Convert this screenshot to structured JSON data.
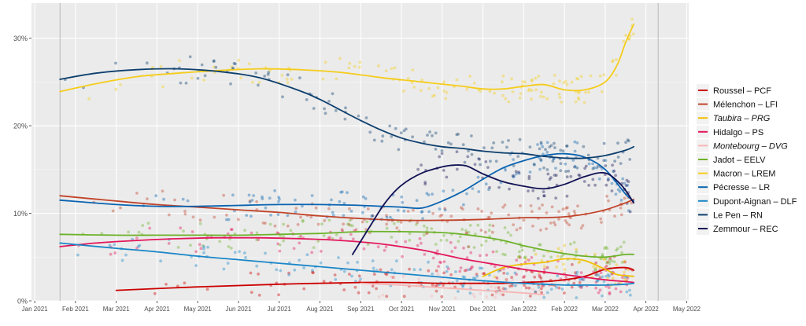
{
  "chart_data": {
    "type": "line",
    "title": "",
    "xlabel": "",
    "ylabel": "",
    "ylim": [
      0,
      34
    ],
    "y_ticks": [
      0,
      10,
      20,
      30
    ],
    "y_tick_labels": [
      "0%",
      "10%",
      "20%",
      "30%"
    ],
    "x_tick_labels": [
      "Jan 2021",
      "Feb 2021",
      "Mar 2021",
      "Apr 2021",
      "May 2021",
      "Jun 2021",
      "Jul 2021",
      "Aug 2021",
      "Sep 2021",
      "Oct 2021",
      "Nov 2021",
      "Dec 2021",
      "Jan 2022",
      "Feb 2022",
      "Mar 2022",
      "Apr 2022",
      "May 2022"
    ],
    "x_tick_months": [
      0,
      1,
      2,
      3,
      4,
      5,
      6,
      7,
      8,
      9,
      10,
      11,
      12,
      13,
      14,
      15,
      16
    ],
    "x_range_months": [
      -0.08,
      16.05
    ],
    "vertical_reference_lines_months": [
      0.62,
      15.3
    ],
    "x_unit": "months since Jan 2021",
    "grid": true,
    "legend_position": "right",
    "background": "#ebebeb",
    "series": [
      {
        "name": "Roussel – PCF",
        "italic": false,
        "color": "#cc0000",
        "x": [
          2.0,
          4.0,
          6.0,
          8.0,
          9.0,
          10.0,
          10.5,
          11.0,
          11.5,
          12.0,
          12.5,
          13.0,
          13.5,
          14.0,
          14.5,
          14.7
        ],
        "y": [
          1.2,
          1.6,
          1.9,
          2.1,
          2.1,
          2.0,
          2.0,
          2.0,
          2.0,
          2.1,
          2.2,
          2.4,
          2.8,
          3.6,
          3.8,
          3.5
        ]
      },
      {
        "name": "Mélenchon – LFI",
        "italic": false,
        "color": "#c1442a",
        "x": [
          0.62,
          2.0,
          3.0,
          4.0,
          5.0,
          6.0,
          7.0,
          8.0,
          9.0,
          10.0,
          11.0,
          12.0,
          12.5,
          13.0,
          13.5,
          14.0,
          14.5,
          14.7
        ],
        "y": [
          12.0,
          11.4,
          11.0,
          10.7,
          10.4,
          10.1,
          9.7,
          9.4,
          9.2,
          9.2,
          9.3,
          9.5,
          9.5,
          9.6,
          9.9,
          10.4,
          11.2,
          11.6
        ]
      },
      {
        "name": "Taubira – PRG",
        "italic": true,
        "color": "#f0c000",
        "x": [
          11.0,
          11.5,
          12.0,
          12.5,
          13.0,
          13.5,
          14.0,
          14.3,
          14.7
        ],
        "y": [
          2.8,
          3.8,
          4.2,
          4.4,
          4.8,
          4.6,
          3.6,
          3.0,
          2.8
        ]
      },
      {
        "name": "Hidalgo – PS",
        "italic": false,
        "color": "#e3175a",
        "x": [
          0.62,
          1.5,
          2.5,
          3.5,
          4.5,
          5.5,
          6.5,
          7.5,
          8.5,
          9.5,
          10.0,
          10.5,
          11.0,
          11.5,
          12.0,
          12.5,
          13.0,
          13.5,
          14.0,
          14.5,
          14.7
        ],
        "y": [
          6.2,
          6.6,
          6.9,
          7.1,
          7.2,
          7.2,
          7.1,
          6.9,
          6.5,
          5.8,
          5.3,
          4.8,
          4.4,
          4.0,
          3.6,
          3.3,
          3.0,
          2.7,
          2.4,
          2.2,
          2.1
        ]
      },
      {
        "name": "Montebourg – DVG",
        "italic": true,
        "color": "#f7b4b4",
        "x": [
          8.0,
          9.0,
          10.0,
          11.0,
          12.0,
          12.5
        ],
        "y": [
          2.0,
          1.8,
          1.5,
          1.2,
          0.9,
          0.7
        ]
      },
      {
        "name": "Jadot – EELV",
        "italic": false,
        "color": "#6db22a",
        "x": [
          0.62,
          2.0,
          3.0,
          4.0,
          5.0,
          6.0,
          7.0,
          8.0,
          9.0,
          10.0,
          10.5,
          11.0,
          11.5,
          12.0,
          12.5,
          13.0,
          13.5,
          14.0,
          14.5,
          14.7
        ],
        "y": [
          7.6,
          7.5,
          7.5,
          7.5,
          7.5,
          7.6,
          7.7,
          7.9,
          7.9,
          7.8,
          7.6,
          7.3,
          6.9,
          6.3,
          5.8,
          5.4,
          5.1,
          5.0,
          5.3,
          5.3
        ]
      },
      {
        "name": "Macron – LREM",
        "italic": false,
        "color": "#f5cc1a",
        "x": [
          0.62,
          1.5,
          2.5,
          3.5,
          4.5,
          5.5,
          6.5,
          7.5,
          8.5,
          9.5,
          10.5,
          11.0,
          11.5,
          12.0,
          12.5,
          13.0,
          13.5,
          14.0,
          14.3,
          14.5,
          14.7
        ],
        "y": [
          23.9,
          24.8,
          25.6,
          26.0,
          26.3,
          26.5,
          26.4,
          26.1,
          25.5,
          25.0,
          24.5,
          24.2,
          24.2,
          24.5,
          24.7,
          24.1,
          24.1,
          25.0,
          27.0,
          29.5,
          31.6
        ]
      },
      {
        "name": "Pécresse – LR",
        "italic": false,
        "color": "#0a63b0",
        "x": [
          0.62,
          2.0,
          3.0,
          4.0,
          5.0,
          6.0,
          7.0,
          8.0,
          9.0,
          9.5,
          10.0,
          10.5,
          11.0,
          11.5,
          12.0,
          12.5,
          13.0,
          13.5,
          14.0,
          14.5,
          14.7
        ],
        "y": [
          11.5,
          11.0,
          10.8,
          10.8,
          10.9,
          11.0,
          11.0,
          10.9,
          10.7,
          10.6,
          11.4,
          12.5,
          13.9,
          15.2,
          16.0,
          16.6,
          16.8,
          16.4,
          15.0,
          12.2,
          11.4
        ]
      },
      {
        "name": "Dupont-Aignan – DLF",
        "italic": false,
        "color": "#1a86c7",
        "x": [
          0.62,
          2.0,
          3.0,
          4.0,
          5.0,
          6.0,
          7.0,
          8.0,
          9.0,
          10.0,
          11.0,
          12.0,
          12.5,
          13.0,
          13.5,
          14.0,
          14.5,
          14.7
        ],
        "y": [
          6.6,
          6.0,
          5.6,
          5.1,
          4.7,
          4.3,
          3.9,
          3.5,
          3.1,
          2.7,
          2.3,
          2.0,
          1.9,
          1.8,
          1.8,
          1.8,
          1.9,
          2.0
        ]
      },
      {
        "name": "Le Pen – RN",
        "italic": false,
        "color": "#0d3f6e",
        "x": [
          0.62,
          1.5,
          2.5,
          3.5,
          4.5,
          5.5,
          6.5,
          7.0,
          7.5,
          8.0,
          8.5,
          9.0,
          9.5,
          10.0,
          10.5,
          11.0,
          11.5,
          12.0,
          12.5,
          13.0,
          13.5,
          14.0,
          14.5,
          14.7
        ],
        "y": [
          25.3,
          26.0,
          26.4,
          26.5,
          26.2,
          25.5,
          24.0,
          23.0,
          21.8,
          20.6,
          19.5,
          18.6,
          18.0,
          17.6,
          17.4,
          17.1,
          16.9,
          16.8,
          16.5,
          16.3,
          16.3,
          16.6,
          17.2,
          17.6
        ]
      },
      {
        "name": "Zemmour – REC",
        "italic": false,
        "color": "#111155",
        "x": [
          7.8,
          8.2,
          8.6,
          9.0,
          9.5,
          10.0,
          10.3,
          10.6,
          11.0,
          11.5,
          12.0,
          12.5,
          13.0,
          13.5,
          14.0,
          14.4,
          14.7
        ],
        "y": [
          5.3,
          8.3,
          11.2,
          13.2,
          14.6,
          15.3,
          15.5,
          15.4,
          14.5,
          13.6,
          13.1,
          12.8,
          13.3,
          14.2,
          14.6,
          13.2,
          11.2
        ]
      }
    ]
  }
}
